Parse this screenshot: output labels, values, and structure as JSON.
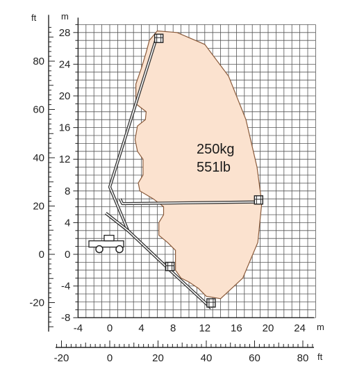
{
  "units": {
    "meters": "m",
    "feet": "ft"
  },
  "load": {
    "mass_kg": "250kg",
    "mass_lb": "551lb"
  },
  "axes": {
    "y_m_ticks": [
      "28",
      "24",
      "20",
      "16",
      "12",
      "8",
      "4",
      "0",
      "-4",
      "-8"
    ],
    "y_ft_ticks": [
      "80",
      "60",
      "40",
      "20",
      "0",
      "-20"
    ],
    "x_m_ticks": [
      "-4",
      "0",
      "4",
      "8",
      "12",
      "16",
      "20",
      "24"
    ],
    "x_ft_ticks": [
      "-20",
      "0",
      "20",
      "40",
      "60",
      "80"
    ]
  },
  "chart_data": {
    "type": "diagram",
    "x_range_m": [
      -4,
      26
    ],
    "y_range_m": [
      -8,
      29
    ],
    "envelope_m": [
      [
        6.0,
        28.2
      ],
      [
        8.5,
        28.0
      ],
      [
        12,
        26.5
      ],
      [
        15,
        22.5
      ],
      [
        17.2,
        17.0
      ],
      [
        18.6,
        11.0
      ],
      [
        19.2,
        6.5
      ],
      [
        18.7,
        1.5
      ],
      [
        16.8,
        -3.0
      ],
      [
        14.0,
        -5.6
      ],
      [
        12.2,
        -5.3
      ],
      [
        11.2,
        -4.3
      ],
      [
        10.0,
        -3.5
      ],
      [
        9.0,
        -3.0
      ],
      [
        8.3,
        -2.0
      ],
      [
        8.3,
        0.5
      ],
      [
        7.3,
        1.5
      ],
      [
        6.2,
        2.4
      ],
      [
        6.2,
        4.0
      ],
      [
        6.8,
        5.0
      ],
      [
        6.8,
        6.0
      ],
      [
        5.5,
        7.0
      ],
      [
        3.8,
        8.0
      ],
      [
        3.6,
        9.0
      ],
      [
        4.2,
        10.0
      ],
      [
        4.2,
        12.0
      ],
      [
        3.5,
        13.0
      ],
      [
        3.2,
        14.5
      ],
      [
        3.5,
        16.2
      ],
      [
        4.5,
        17.0
      ],
      [
        4.6,
        18.0
      ],
      [
        3.3,
        19.0
      ],
      [
        3.3,
        21.5
      ],
      [
        4.0,
        23.5
      ],
      [
        4.6,
        25.5
      ],
      [
        5.0,
        27.0
      ]
    ],
    "booms_m": [
      {
        "name": "up",
        "points": [
          [
            -0.5,
            5.2
          ],
          [
            2.3,
            3.0
          ],
          [
            0.0,
            8.5
          ],
          [
            5.8,
            27.0
          ]
        ]
      },
      {
        "name": "horizontal",
        "points": [
          [
            1.3,
            7.0
          ],
          [
            1.6,
            6.4
          ],
          [
            17.8,
            6.6
          ],
          [
            18.8,
            6.6
          ]
        ]
      },
      {
        "name": "down",
        "points": [
          [
            -0.5,
            5.2
          ],
          [
            2.3,
            3.0
          ],
          [
            7.6,
            -2.0
          ],
          [
            12.8,
            -6.8
          ]
        ]
      }
    ],
    "platforms_m": [
      [
        6.2,
        27.0
      ],
      [
        18.8,
        6.6
      ],
      [
        7.6,
        -1.8
      ],
      [
        12.8,
        -6.4
      ]
    ],
    "vehicle_m": [
      0,
      1.0
    ]
  },
  "colors": {
    "envelope_fill": "#fbe2cf",
    "envelope_stroke": "#8a5a3a",
    "grid": "#555555",
    "axis": "#222222"
  }
}
